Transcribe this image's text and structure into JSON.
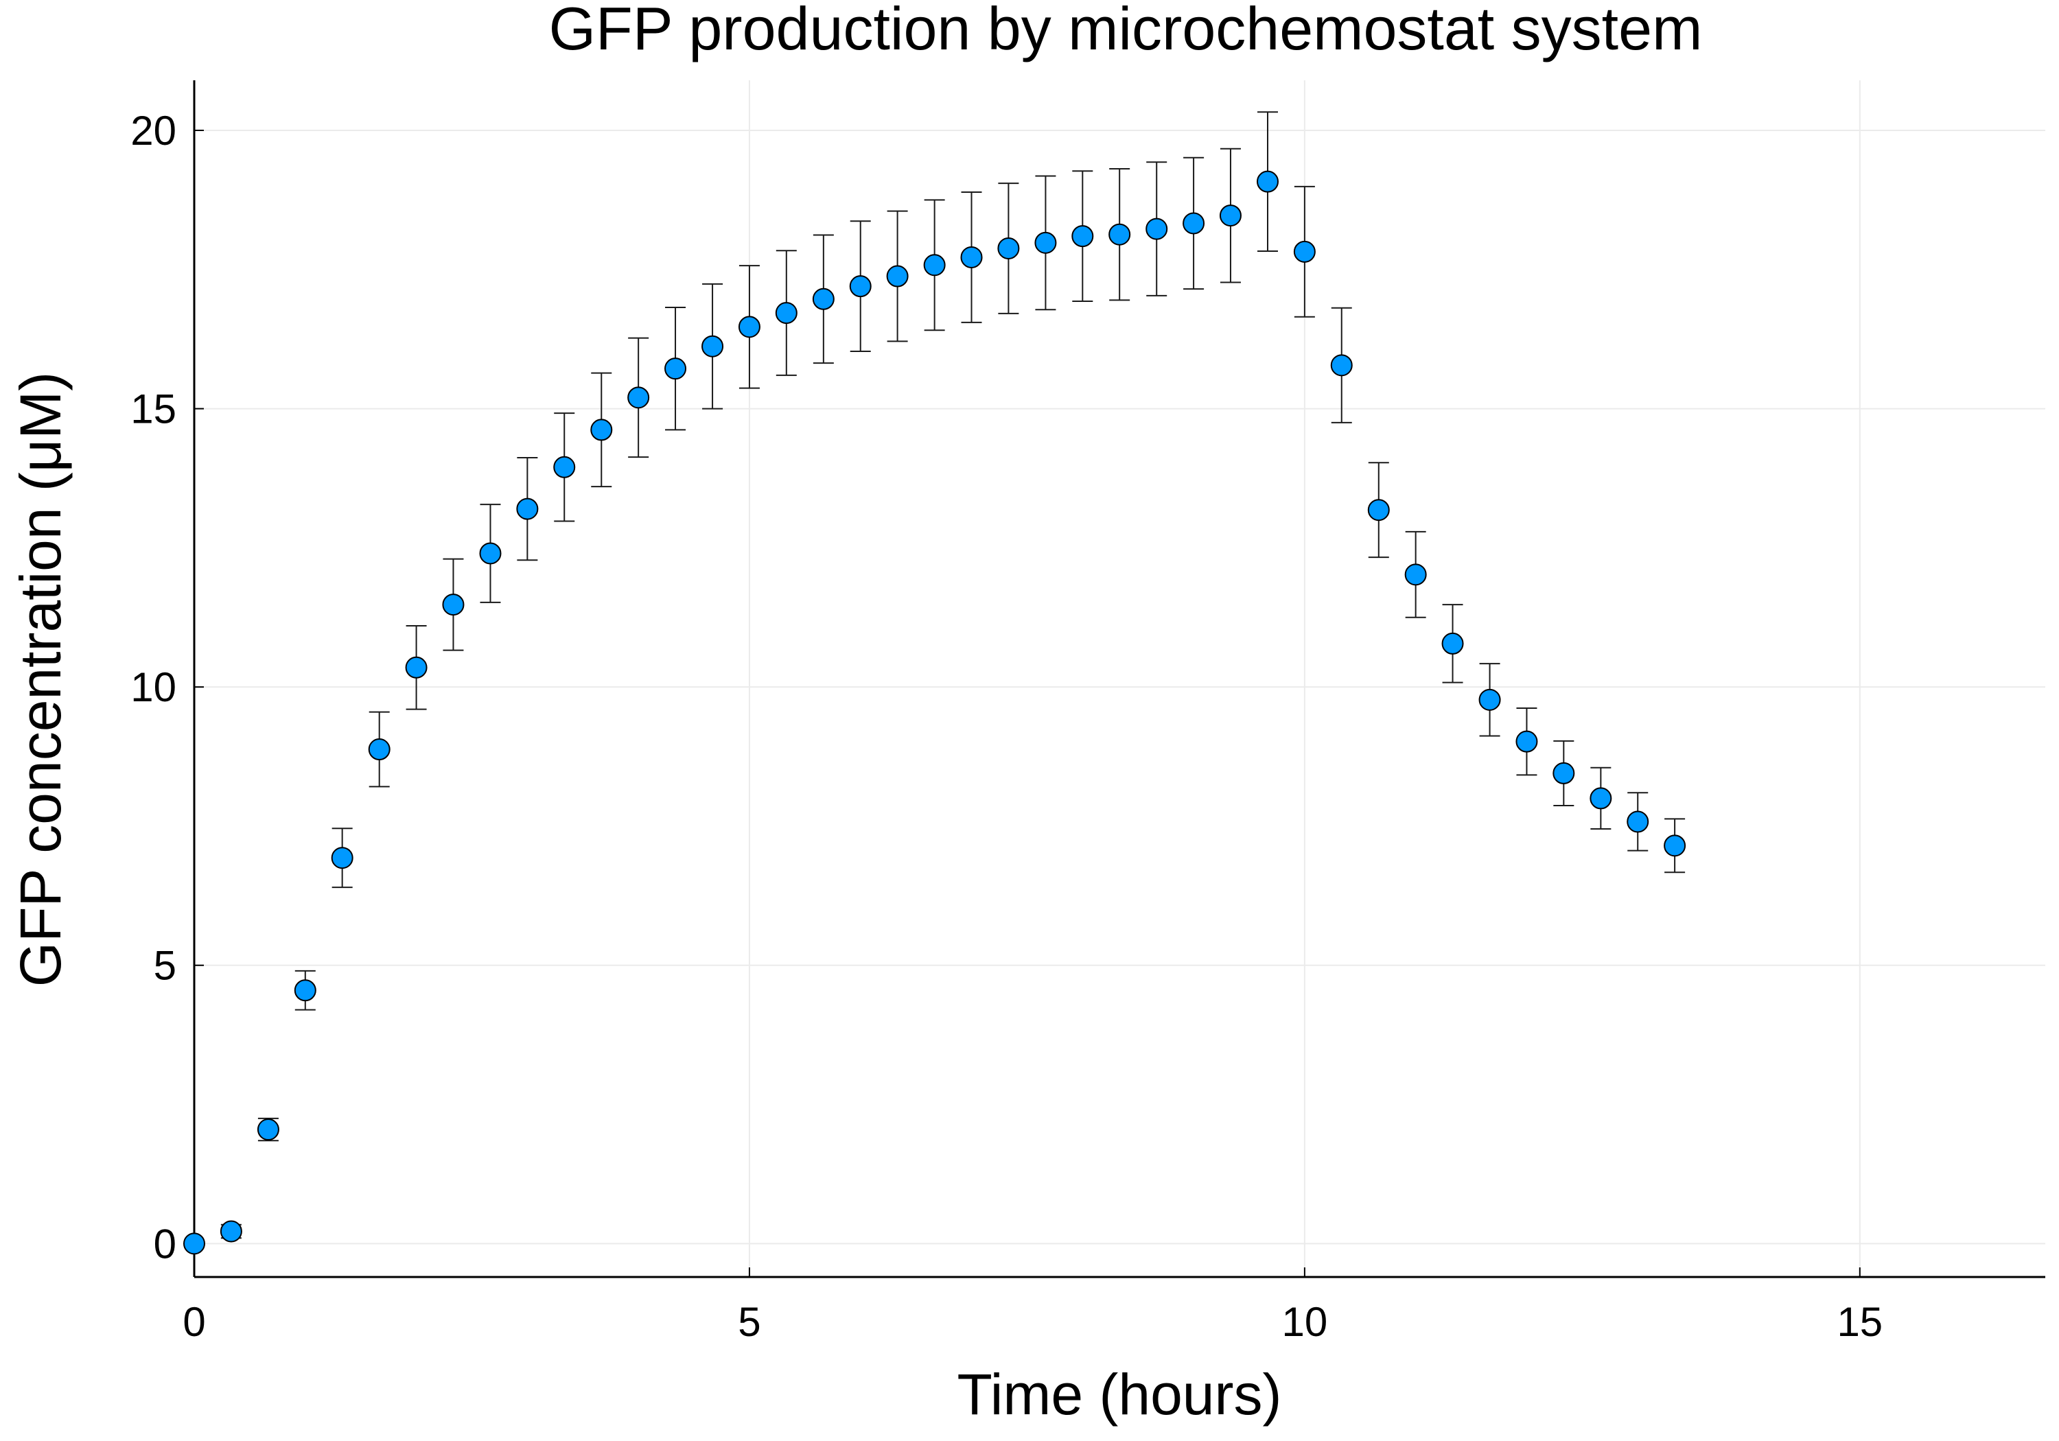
{
  "chart_data": {
    "type": "scatter",
    "title": "GFP production by microchemostat system",
    "xlabel": "Time (hours)",
    "ylabel": "GFP concentration (μM)",
    "xlim": [
      0,
      16.67
    ],
    "ylim": [
      -0.6,
      20.9
    ],
    "xticks": [
      0,
      5,
      10,
      15
    ],
    "yticks": [
      0,
      5,
      10,
      15,
      20
    ],
    "grid": true,
    "legend": "none",
    "marker_color": "#0099ff",
    "series": [
      {
        "x": [
          0,
          0.333,
          0.667,
          1.0,
          1.333,
          1.667,
          2.0,
          2.333,
          2.667,
          3.0,
          3.333,
          3.667,
          4.0,
          4.333,
          4.667,
          5.0,
          5.333,
          5.667,
          6.0,
          6.333,
          6.667,
          7.0,
          7.333,
          7.667,
          8.0,
          8.333,
          8.667,
          9.0,
          9.333,
          9.667,
          10.0,
          10.333,
          10.667,
          11.0,
          11.333,
          11.667,
          12.0,
          12.333,
          12.667,
          13.0,
          13.333
        ],
        "y": [
          0.0,
          0.22,
          2.05,
          4.55,
          6.93,
          8.88,
          10.35,
          11.48,
          12.4,
          13.2,
          13.95,
          14.62,
          15.2,
          15.72,
          16.12,
          16.47,
          16.72,
          16.97,
          17.2,
          17.38,
          17.58,
          17.72,
          17.88,
          17.98,
          18.1,
          18.13,
          18.23,
          18.33,
          18.47,
          19.08,
          17.82,
          15.78,
          13.18,
          12.02,
          10.78,
          9.77,
          9.02,
          8.45,
          8.0,
          7.58,
          7.15
        ],
        "err": [
          0.0,
          0.12,
          0.2,
          0.35,
          0.53,
          0.67,
          0.75,
          0.82,
          0.88,
          0.92,
          0.97,
          1.02,
          1.07,
          1.1,
          1.12,
          1.1,
          1.12,
          1.15,
          1.17,
          1.17,
          1.17,
          1.17,
          1.17,
          1.2,
          1.17,
          1.18,
          1.2,
          1.18,
          1.2,
          1.25,
          1.17,
          1.03,
          0.85,
          0.77,
          0.7,
          0.65,
          0.6,
          0.58,
          0.55,
          0.52,
          0.48
        ]
      }
    ]
  }
}
